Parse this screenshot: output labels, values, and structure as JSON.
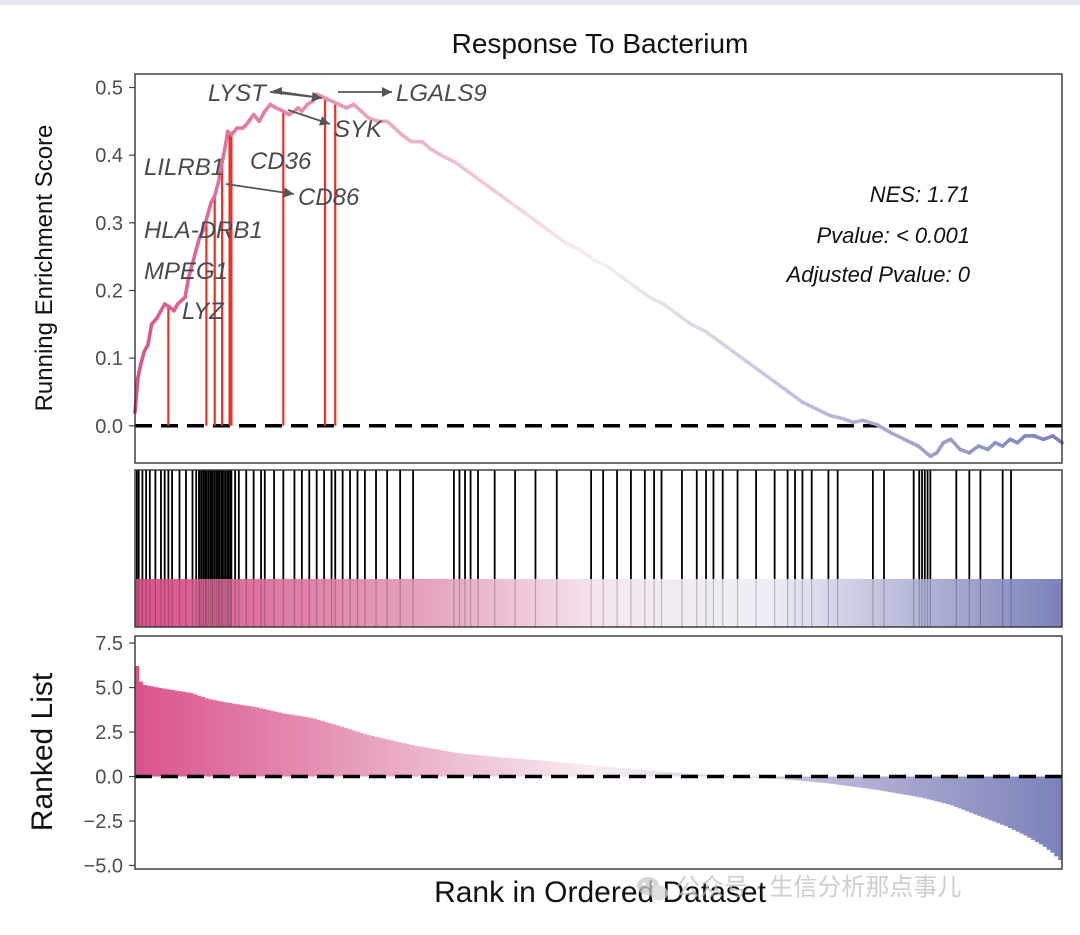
{
  "chart_data": {
    "type": "gsea_enrichment_plot",
    "title": "Response To Bacterium",
    "xlabel": "Rank in Ordered Dataset",
    "x_range": [
      0,
      1000
    ],
    "colors": {
      "high": "#d9538a",
      "mid": "#f7eef3",
      "low": "#7c81bb",
      "hit_line": "#e8332b",
      "annotation": "#4a4a4a",
      "tick_text": "#4d4d4d",
      "border": "#333333"
    },
    "enrichment_panel": {
      "ylabel": "Running Enrichment Score",
      "ylim": [
        -0.055,
        0.52
      ],
      "yticks": [
        0.0,
        0.1,
        0.2,
        0.3,
        0.4,
        0.5
      ],
      "ytick_labels": [
        "0.0",
        "0.1",
        "0.2",
        "0.3",
        "0.4",
        "0.5"
      ],
      "running_score": [
        [
          0,
          0.02
        ],
        [
          3,
          0.07
        ],
        [
          6,
          0.09
        ],
        [
          10,
          0.11
        ],
        [
          14,
          0.12
        ],
        [
          18,
          0.15
        ],
        [
          24,
          0.16
        ],
        [
          28,
          0.17
        ],
        [
          32,
          0.18
        ],
        [
          38,
          0.175
        ],
        [
          42,
          0.17
        ],
        [
          46,
          0.18
        ],
        [
          50,
          0.185
        ],
        [
          54,
          0.19
        ],
        [
          58,
          0.22
        ],
        [
          62,
          0.24
        ],
        [
          66,
          0.26
        ],
        [
          70,
          0.28
        ],
        [
          74,
          0.29
        ],
        [
          78,
          0.31
        ],
        [
          82,
          0.33
        ],
        [
          86,
          0.34
        ],
        [
          90,
          0.36
        ],
        [
          94,
          0.39
        ],
        [
          97,
          0.41
        ],
        [
          100,
          0.435
        ],
        [
          104,
          0.43
        ],
        [
          110,
          0.44
        ],
        [
          116,
          0.44
        ],
        [
          120,
          0.445
        ],
        [
          128,
          0.46
        ],
        [
          134,
          0.45
        ],
        [
          140,
          0.465
        ],
        [
          146,
          0.475
        ],
        [
          152,
          0.47
        ],
        [
          160,
          0.465
        ],
        [
          166,
          0.46
        ],
        [
          172,
          0.465
        ],
        [
          176,
          0.47
        ],
        [
          180,
          0.465
        ],
        [
          186,
          0.475
        ],
        [
          192,
          0.48
        ],
        [
          196,
          0.49
        ],
        [
          204,
          0.485
        ],
        [
          212,
          0.48
        ],
        [
          220,
          0.475
        ],
        [
          228,
          0.47
        ],
        [
          236,
          0.475
        ],
        [
          244,
          0.465
        ],
        [
          252,
          0.455
        ],
        [
          262,
          0.45
        ],
        [
          272,
          0.45
        ],
        [
          280,
          0.44
        ],
        [
          288,
          0.43
        ],
        [
          298,
          0.42
        ],
        [
          310,
          0.42
        ],
        [
          318,
          0.41
        ],
        [
          330,
          0.4
        ],
        [
          345,
          0.39
        ],
        [
          360,
          0.375
        ],
        [
          375,
          0.36
        ],
        [
          390,
          0.345
        ],
        [
          405,
          0.33
        ],
        [
          420,
          0.315
        ],
        [
          435,
          0.3
        ],
        [
          450,
          0.285
        ],
        [
          465,
          0.27
        ],
        [
          480,
          0.26
        ],
        [
          495,
          0.245
        ],
        [
          510,
          0.235
        ],
        [
          525,
          0.22
        ],
        [
          540,
          0.205
        ],
        [
          555,
          0.19
        ],
        [
          570,
          0.18
        ],
        [
          585,
          0.165
        ],
        [
          600,
          0.15
        ],
        [
          615,
          0.14
        ],
        [
          630,
          0.125
        ],
        [
          645,
          0.11
        ],
        [
          660,
          0.095
        ],
        [
          675,
          0.08
        ],
        [
          690,
          0.065
        ],
        [
          705,
          0.05
        ],
        [
          720,
          0.035
        ],
        [
          735,
          0.025
        ],
        [
          750,
          0.015
        ],
        [
          765,
          0.01
        ],
        [
          775,
          0.005
        ],
        [
          785,
          0.008
        ],
        [
          800,
          0.002
        ],
        [
          815,
          -0.01
        ],
        [
          830,
          -0.02
        ],
        [
          845,
          -0.03
        ],
        [
          858,
          -0.045
        ],
        [
          865,
          -0.04
        ],
        [
          872,
          -0.025
        ],
        [
          880,
          -0.02
        ],
        [
          890,
          -0.035
        ],
        [
          900,
          -0.04
        ],
        [
          910,
          -0.03
        ],
        [
          920,
          -0.035
        ],
        [
          928,
          -0.025
        ],
        [
          936,
          -0.03
        ],
        [
          944,
          -0.02
        ],
        [
          952,
          -0.025
        ],
        [
          960,
          -0.015
        ],
        [
          970,
          -0.015
        ],
        [
          980,
          -0.02
        ],
        [
          990,
          -0.015
        ],
        [
          1000,
          -0.025
        ]
      ],
      "leading_edge_hits": [
        36,
        77,
        86,
        94,
        102,
        104,
        160,
        205,
        216
      ],
      "gene_labels": [
        {
          "text": "LYST"
        },
        {
          "text": "LGALS9"
        },
        {
          "text": "SYK"
        },
        {
          "text": "CD36"
        },
        {
          "text": "LILRB1"
        },
        {
          "text": "CD86"
        },
        {
          "text": "HLA-DRB1"
        },
        {
          "text": "MPEG1"
        },
        {
          "text": "LYZ"
        }
      ],
      "stats": [
        "NES: 1.71",
        "Pvalue: < 0.001",
        "Adjusted Pvalue: 0"
      ]
    },
    "rug_panel": {
      "hit_ranks": [
        2,
        4,
        8,
        12,
        16,
        22,
        28,
        32,
        36,
        40,
        48,
        55,
        62,
        66,
        69,
        70,
        72,
        74,
        76,
        77,
        79,
        81,
        83,
        84,
        86,
        88,
        90,
        91,
        93,
        94,
        96,
        98,
        100,
        101,
        103,
        104,
        108,
        112,
        120,
        128,
        136,
        140,
        150,
        160,
        172,
        180,
        188,
        196,
        204,
        212,
        216,
        224,
        232,
        240,
        248,
        260,
        272,
        286,
        300,
        344,
        350,
        356,
        362,
        370,
        388,
        410,
        432,
        455,
        492,
        505,
        520,
        535,
        550,
        560,
        568,
        590,
        606,
        616,
        624,
        634,
        650,
        670,
        690,
        704,
        712,
        720,
        730,
        748,
        758,
        796,
        808,
        840,
        846,
        849,
        852,
        855,
        858,
        886,
        900,
        912,
        936,
        945
      ]
    },
    "ranked_panel": {
      "ylabel": "Ranked List",
      "ylim": [
        -5.2,
        7.9
      ],
      "yticks": [
        -5.0,
        -2.5,
        0.0,
        2.5,
        5.0,
        7.5
      ],
      "ytick_labels": [
        "−5.0",
        "−2.5",
        "0.0",
        "2.5",
        "5.0",
        "7.5"
      ],
      "ranked_metric": [
        [
          0,
          6.8
        ],
        [
          5,
          5.4
        ],
        [
          10,
          5.15
        ],
        [
          30,
          4.95
        ],
        [
          60,
          4.7
        ],
        [
          80,
          4.35
        ],
        [
          100,
          4.15
        ],
        [
          130,
          3.9
        ],
        [
          160,
          3.55
        ],
        [
          190,
          3.3
        ],
        [
          220,
          2.85
        ],
        [
          250,
          2.35
        ],
        [
          300,
          1.75
        ],
        [
          350,
          1.3
        ],
        [
          400,
          1.05
        ],
        [
          450,
          0.85
        ],
        [
          500,
          0.6
        ],
        [
          550,
          0.35
        ],
        [
          600,
          0.15
        ],
        [
          650,
          0.0
        ],
        [
          700,
          -0.15
        ],
        [
          750,
          -0.4
        ],
        [
          800,
          -0.75
        ],
        [
          850,
          -1.2
        ],
        [
          880,
          -1.6
        ],
        [
          910,
          -2.2
        ],
        [
          940,
          -2.8
        ],
        [
          960,
          -3.3
        ],
        [
          980,
          -3.9
        ],
        [
          990,
          -4.3
        ],
        [
          1000,
          -4.8
        ]
      ]
    }
  },
  "watermark": {
    "text": "公众号 · 生信分析那点事儿",
    "icon": "wechat-icon"
  }
}
